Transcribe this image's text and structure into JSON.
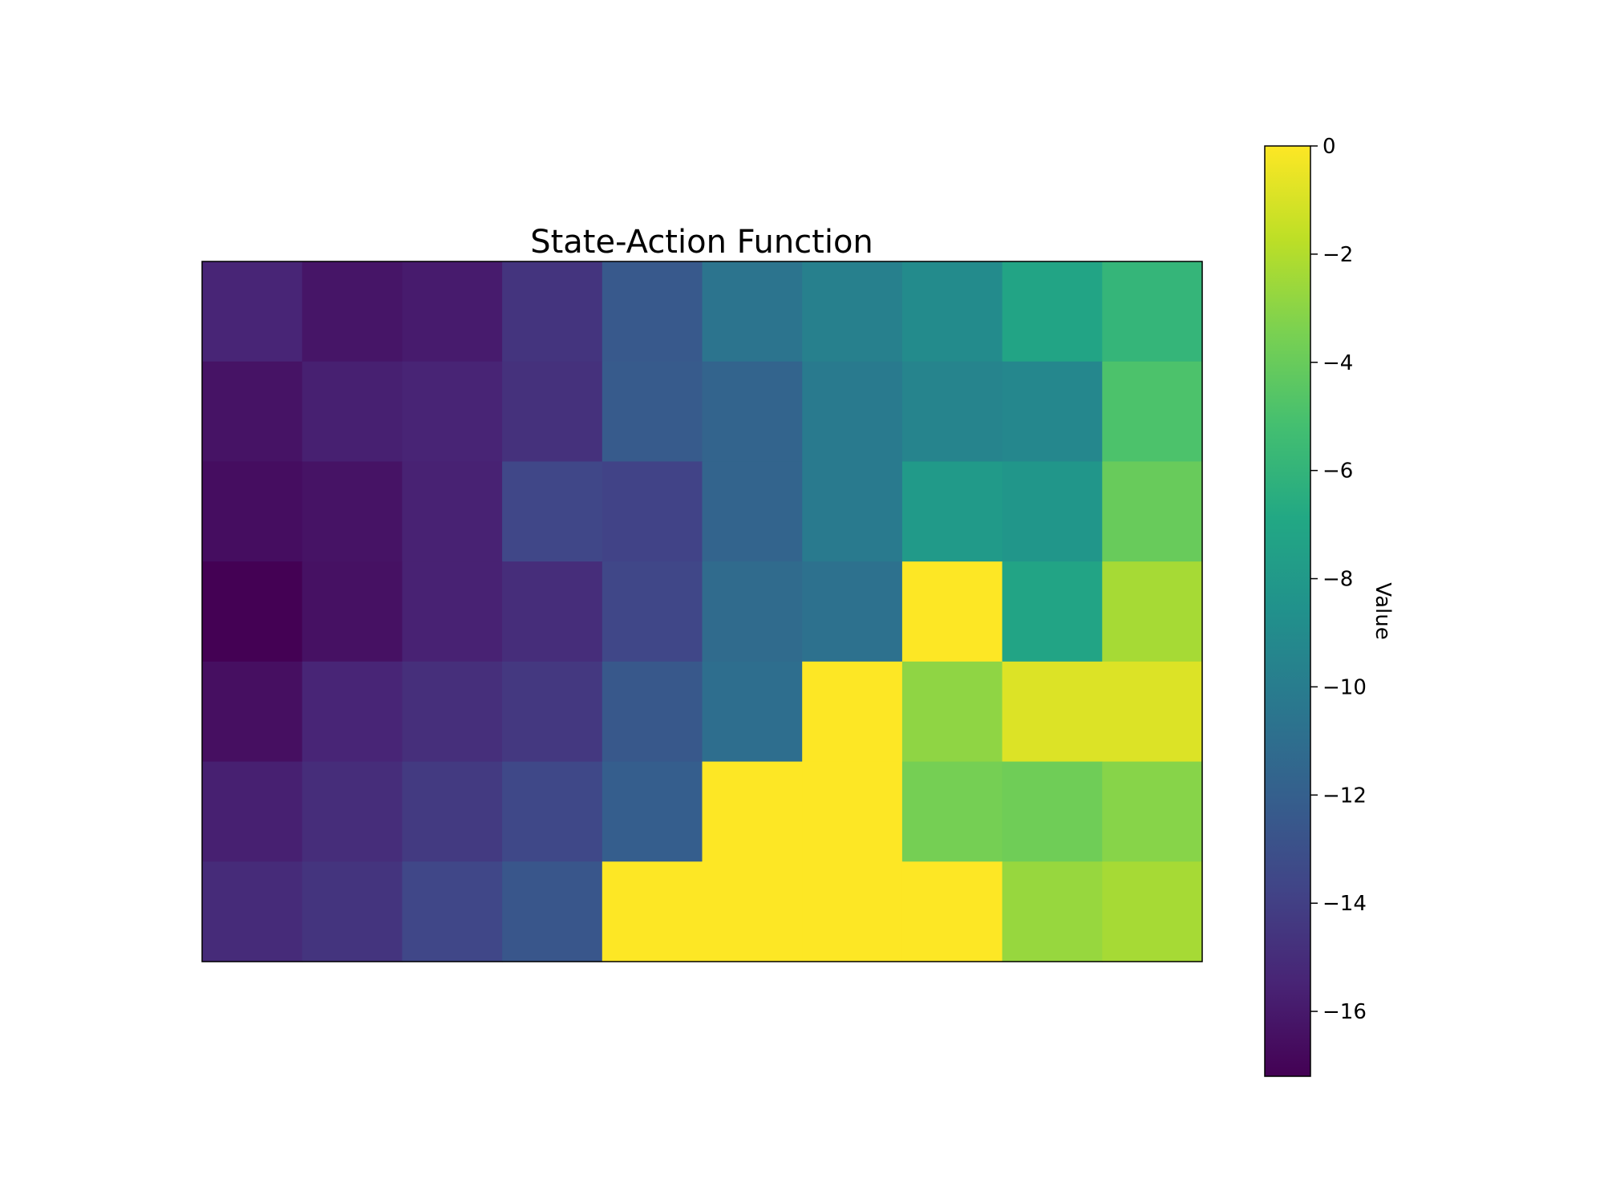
{
  "chart_data": {
    "type": "heatmap",
    "title": "State-Action Function",
    "colorbar_label": "Value",
    "colormap": "viridis",
    "vmin": -17.2,
    "vmax": 0,
    "colorbar_ticks": [
      0,
      -2,
      -4,
      -6,
      -8,
      -10,
      -12,
      -14,
      -16
    ],
    "colorbar_tick_labels": [
      "0",
      "−2",
      "−4",
      "−6",
      "−8",
      "−10",
      "−12",
      "−14",
      "−16"
    ],
    "rows": 7,
    "cols": 10,
    "values": [
      [
        -15.4,
        -16.2,
        -15.9,
        -14.6,
        -12.4,
        -10.6,
        -9.8,
        -9.0,
        -7.2,
        -5.9
      ],
      [
        -16.3,
        -15.7,
        -15.5,
        -14.8,
        -12.3,
        -11.7,
        -10.2,
        -9.5,
        -9.3,
        -4.9
      ],
      [
        -16.6,
        -16.3,
        -15.6,
        -13.6,
        -13.8,
        -11.7,
        -10.2,
        -7.9,
        -8.2,
        -4.0
      ],
      [
        -17.2,
        -16.4,
        -15.6,
        -15.0,
        -13.6,
        -11.2,
        -10.8,
        0,
        -7.2,
        -2.3
      ],
      [
        -16.5,
        -15.4,
        -14.9,
        -14.4,
        -12.5,
        -11.0,
        0,
        -2.9,
        -0.9,
        -0.9
      ],
      [
        -15.7,
        -15.0,
        -14.3,
        -13.5,
        -12.1,
        0,
        0,
        -3.6,
        -3.8,
        -3.1
      ],
      [
        -15.1,
        -14.6,
        -13.6,
        -12.6,
        0,
        0,
        0,
        0,
        -2.7,
        -2.3
      ]
    ]
  }
}
